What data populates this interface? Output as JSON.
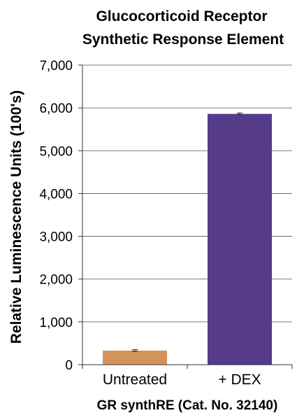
{
  "chart_data": {
    "type": "bar",
    "title": [
      "Glucocorticoid Receptor",
      "Synthetic Response Element"
    ],
    "xlabel": "GR synthRE (Cat. No. 32140)",
    "ylabel": "Relative Luminescence Units (100's)",
    "categories": [
      "Untreated",
      "+ DEX"
    ],
    "values": [
      330,
      5860
    ],
    "error": [
      20,
      20
    ],
    "colors": [
      "#d4935a",
      "#553b89"
    ],
    "ylim": [
      0,
      7000
    ],
    "yticks": [
      0,
      1000,
      2000,
      3000,
      4000,
      5000,
      6000,
      7000
    ],
    "ytick_labels": [
      "0",
      "1,000",
      "2,000",
      "3,000",
      "4,000",
      "5,000",
      "6,000",
      "7,000"
    ],
    "grid": true,
    "legend": "none"
  }
}
